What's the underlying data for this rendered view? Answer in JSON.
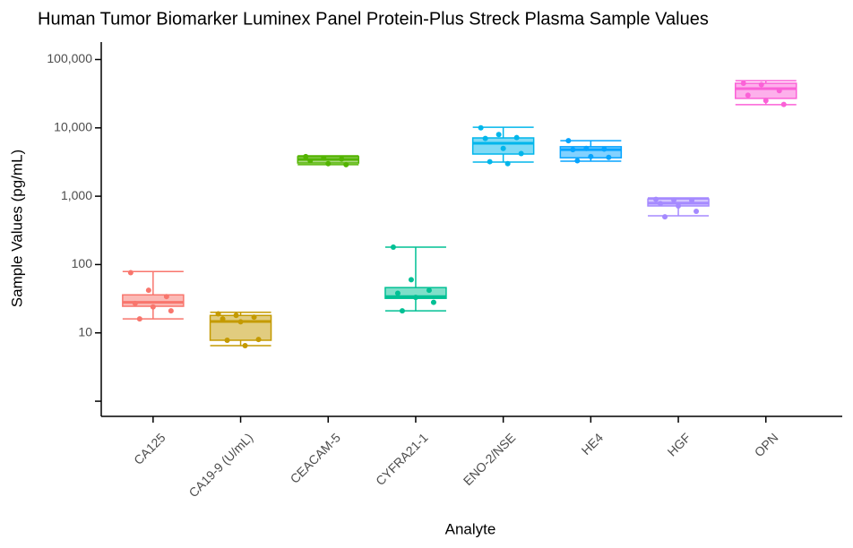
{
  "chart_data": {
    "type": "box",
    "title": "Human Tumor Biomarker Luminex Panel Protein-Plus Streck Plasma Sample Values",
    "x_label": "Analyte",
    "y_label": "Sample Values (pg/mL)",
    "log_scale": true,
    "ylim": [
      0.6,
      180000
    ],
    "yticks": [
      {
        "value": 10,
        "label": "10"
      },
      {
        "value": 100,
        "label": "100"
      },
      {
        "value": 1000,
        "label": "1,000"
      },
      {
        "value": 10000,
        "label": "10,000"
      },
      {
        "value": 100000,
        "label": "100,000"
      }
    ],
    "unlabeled_yticks": [
      1
    ],
    "categories": [
      "CA125",
      "CA19-9 (U/mL)",
      "CEACAM-5",
      "CYFRA21-1",
      "ENO-2/NSE",
      "HE4",
      "HGF",
      "OPN"
    ],
    "boxes": [
      {
        "color": "#F8766D",
        "min": 16,
        "q1": 24.5,
        "median": 28,
        "q3": 36,
        "max": 79,
        "points": [
          76,
          42,
          34,
          27,
          24,
          21,
          16
        ]
      },
      {
        "color": "#C49A00",
        "min": 6.5,
        "q1": 7.8,
        "median": 14.7,
        "q3": 18,
        "max": 20,
        "points": [
          19,
          18,
          17,
          16,
          14.5,
          8,
          7.8,
          6.5
        ]
      },
      {
        "color": "#53B400",
        "min": 2900,
        "q1": 3060,
        "median": 3460,
        "q3": 3790,
        "max": 3900,
        "points": [
          3800,
          3600,
          3500,
          3300,
          3000,
          2900
        ]
      },
      {
        "color": "#00C094",
        "min": 21,
        "q1": 32,
        "median": 34,
        "q3": 46,
        "max": 180,
        "points": [
          180,
          60,
          42,
          38,
          33,
          28,
          21
        ]
      },
      {
        "color": "#00B6EB",
        "min": 3160,
        "q1": 4140,
        "median": 5950,
        "q3": 7130,
        "max": 10200,
        "points": [
          10000,
          8000,
          7200,
          7000,
          5000,
          4200,
          3200,
          3000
        ]
      },
      {
        "color": "#06A4FF",
        "min": 3250,
        "q1": 3650,
        "median": 4800,
        "q3": 5300,
        "max": 6500,
        "points": [
          6500,
          5000,
          4900,
          4800,
          3800,
          3700,
          3300
        ]
      },
      {
        "color": "#A58AFF",
        "min": 517,
        "q1": 720,
        "median": 790,
        "q3": 910,
        "max": 945,
        "points": [
          900,
          880,
          870,
          780,
          720,
          600,
          500
        ]
      },
      {
        "color": "#FB61D7",
        "min": 21900,
        "q1": 27000,
        "median": 37500,
        "q3": 45000,
        "max": 49000,
        "points": [
          45000,
          43000,
          35000,
          30000,
          25000,
          22000
        ]
      }
    ]
  }
}
